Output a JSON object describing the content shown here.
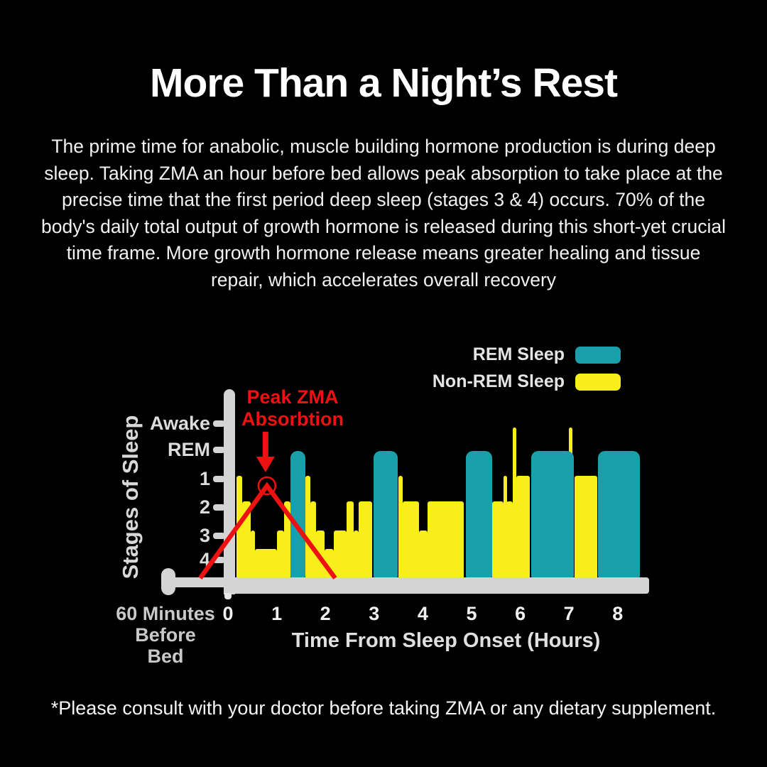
{
  "title": "More Than a Night’s Rest",
  "intro": "The prime time for anabolic, muscle building hormone production is during deep sleep. Taking ZMA an hour before bed allows peak absorption to take place at the precise time that the first period deep sleep (stages 3 & 4) occurs. 70% of the body's daily total output of growth hormone is released during this short-yet crucial time frame. More growth hormone release means greater healing and tissue repair, which accelerates overall recovery",
  "disclaimer": "*Please consult with your doctor before taking ZMA or any dietary supplement.",
  "legend": [
    {
      "label": "REM Sleep",
      "color": "#1aa0aa"
    },
    {
      "label": "Non-REM Sleep",
      "color": "#f8ee19"
    }
  ],
  "annotation": {
    "line1": "Peak ZMA",
    "line2": "Absorbtion",
    "color": "#ee1111"
  },
  "axes": {
    "y_title": "Stages of Sleep",
    "y_labels": [
      "Awake",
      "REM",
      "1",
      "2",
      "3",
      "4"
    ],
    "x_labels": [
      "0",
      "1",
      "2",
      "3",
      "4",
      "5",
      "6",
      "7",
      "8"
    ],
    "x_prefix_line1": "60 Minutes",
    "x_prefix_line2": "Before Bed",
    "x_title": "Time From Sleep Onset (Hours)"
  },
  "colors": {
    "background": "#000000",
    "rem": "#1aa0aa",
    "nonrem": "#f8ee19",
    "axis": "#d4d4d4",
    "accent_red": "#ee1111",
    "text": "#f2f2f2",
    "muted_text": "#c9c9c9"
  },
  "chart_data": {
    "type": "area",
    "subtype": "step-hypnogram",
    "title": "",
    "xlabel": "Time From Sleep Onset (Hours)",
    "ylabel": "Stages of Sleep",
    "x_range_hours": [
      0,
      8.5
    ],
    "stage_order_top_to_bottom": [
      "Awake",
      "REM",
      "1",
      "2",
      "3",
      "4"
    ],
    "legend_position": "top-right",
    "grid": false,
    "segments": [
      {
        "t0": 0.17,
        "t1": 0.29,
        "stage": "1"
      },
      {
        "t0": 0.29,
        "t1": 0.47,
        "stage": "2"
      },
      {
        "t0": 0.47,
        "t1": 0.55,
        "stage": "3"
      },
      {
        "t0": 0.55,
        "t1": 1.01,
        "stage": "4"
      },
      {
        "t0": 1.01,
        "t1": 1.15,
        "stage": "3"
      },
      {
        "t0": 1.15,
        "t1": 1.28,
        "stage": "2"
      },
      {
        "t0": 1.28,
        "t1": 1.59,
        "stage": "REM"
      },
      {
        "t0": 1.59,
        "t1": 1.69,
        "stage": "1"
      },
      {
        "t0": 1.69,
        "t1": 1.81,
        "stage": "2"
      },
      {
        "t0": 1.81,
        "t1": 1.98,
        "stage": "3"
      },
      {
        "t0": 1.98,
        "t1": 2.17,
        "stage": "4"
      },
      {
        "t0": 2.17,
        "t1": 2.43,
        "stage": "3"
      },
      {
        "t0": 2.43,
        "t1": 2.58,
        "stage": "2"
      },
      {
        "t0": 2.58,
        "t1": 2.68,
        "stage": "3"
      },
      {
        "t0": 2.68,
        "t1": 2.96,
        "stage": "2"
      },
      {
        "t0": 2.99,
        "t1": 3.48,
        "stage": "REM"
      },
      {
        "t0": 3.5,
        "t1": 3.59,
        "stage": "1"
      },
      {
        "t0": 3.59,
        "t1": 3.92,
        "stage": "2"
      },
      {
        "t0": 3.92,
        "t1": 4.1,
        "stage": "3"
      },
      {
        "t0": 4.1,
        "t1": 4.84,
        "stage": "2"
      },
      {
        "t0": 4.88,
        "t1": 5.42,
        "stage": "REM"
      },
      {
        "t0": 5.42,
        "t1": 5.66,
        "stage": "2"
      },
      {
        "t0": 5.66,
        "t1": 5.72,
        "stage": "1",
        "spike": true
      },
      {
        "t0": 5.72,
        "t1": 5.84,
        "stage": "2"
      },
      {
        "t0": 5.84,
        "t1": 5.92,
        "stage": "Awake",
        "spike": true
      },
      {
        "t0": 5.92,
        "t1": 6.2,
        "stage": "1"
      },
      {
        "t0": 6.22,
        "t1": 7.1,
        "stage": "REM"
      },
      {
        "t0": 7.0,
        "t1": 7.08,
        "stage": "Awake",
        "spike": true
      },
      {
        "t0": 7.11,
        "t1": 7.58,
        "stage": "1"
      },
      {
        "t0": 7.6,
        "t1": 8.46,
        "stage": "REM"
      }
    ],
    "zma_absorption": {
      "description": "Red line: ZMA absorption rises from 60 minutes before bed and peaks at the first deep-sleep period",
      "starts_hr": -0.57,
      "peak_hr": 0.8,
      "ends_hr": 2.2
    }
  }
}
